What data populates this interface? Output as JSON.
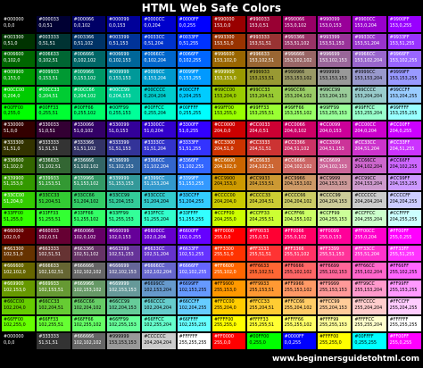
{
  "title": "HTML Web Safe Colors",
  "footer": "www.beginnersguidetohtml.com",
  "chart_data": {
    "type": "table",
    "rows": [
      [
        {
          "hex": "#000000",
          "rgb": "0,0,0"
        },
        {
          "hex": "#000033",
          "rgb": "0,0,51"
        },
        {
          "hex": "#000066",
          "rgb": "0,0,102"
        },
        {
          "hex": "#000099",
          "rgb": "0,0,153"
        },
        {
          "hex": "#0000CC",
          "rgb": "0,0,204"
        },
        {
          "hex": "#0000FF",
          "rgb": "0,0,255"
        },
        {
          "hex": "#990000",
          "rgb": "153,0,0"
        },
        {
          "hex": "#990033",
          "rgb": "153,0,51"
        },
        {
          "hex": "#990066",
          "rgb": "153,0,102"
        },
        {
          "hex": "#990099",
          "rgb": "153,0,153"
        },
        {
          "hex": "#9900CC",
          "rgb": "153,0,204"
        },
        {
          "hex": "#9900FF",
          "rgb": "153,0,255"
        }
      ],
      [
        {
          "hex": "#003300",
          "rgb": "0,51,0"
        },
        {
          "hex": "#003333",
          "rgb": "0,51,51"
        },
        {
          "hex": "#003366",
          "rgb": "0,51,102"
        },
        {
          "hex": "#003399",
          "rgb": "0,51,153"
        },
        {
          "hex": "#0033CC",
          "rgb": "0,51,204"
        },
        {
          "hex": "#0033FF",
          "rgb": "0,51,255"
        },
        {
          "hex": "#993300",
          "rgb": "153,51,0"
        },
        {
          "hex": "#993333",
          "rgb": "153,51,51"
        },
        {
          "hex": "#993366",
          "rgb": "153,51,102"
        },
        {
          "hex": "#993399",
          "rgb": "153,51,153"
        },
        {
          "hex": "#9933CC",
          "rgb": "153,51,204"
        },
        {
          "hex": "#9933FF",
          "rgb": "153,51,255"
        }
      ],
      [
        {
          "hex": "#006600",
          "rgb": "0,102,0"
        },
        {
          "hex": "#006633",
          "rgb": "0,102,51"
        },
        {
          "hex": "#006666",
          "rgb": "0,102,102"
        },
        {
          "hex": "#006699",
          "rgb": "0,102,153"
        },
        {
          "hex": "#0066CC",
          "rgb": "0,102,204"
        },
        {
          "hex": "#0066FF",
          "rgb": "0,102,255"
        },
        {
          "hex": "#996600",
          "rgb": "153,102,0"
        },
        {
          "hex": "#996633",
          "rgb": "153,102,51"
        },
        {
          "hex": "#996666",
          "rgb": "153,102,102"
        },
        {
          "hex": "#996699",
          "rgb": "153,102,153"
        },
        {
          "hex": "#9966CC",
          "rgb": "153,102,204"
        },
        {
          "hex": "#9966FF",
          "rgb": "153,102,255"
        }
      ],
      [
        {
          "hex": "#009900",
          "rgb": "0,153,0"
        },
        {
          "hex": "#009933",
          "rgb": "0,153,51"
        },
        {
          "hex": "#009966",
          "rgb": "0,153,102"
        },
        {
          "hex": "#009999",
          "rgb": "0,153,153"
        },
        {
          "hex": "#0099CC",
          "rgb": "0,153,204"
        },
        {
          "hex": "#0099FF",
          "rgb": "0,153,255"
        },
        {
          "hex": "#999900",
          "rgb": "153,153,0"
        },
        {
          "hex": "#999933",
          "rgb": "153,153,51"
        },
        {
          "hex": "#999966",
          "rgb": "153,153,102"
        },
        {
          "hex": "#999999",
          "rgb": "153,153,153"
        },
        {
          "hex": "#9999CC",
          "rgb": "153,153,204"
        },
        {
          "hex": "#9999FF",
          "rgb": "153,153,255"
        }
      ],
      [
        {
          "hex": "#00CC00",
          "rgb": "0,204,0"
        },
        {
          "hex": "#00CC33",
          "rgb": "0,204,51"
        },
        {
          "hex": "#00CC66",
          "rgb": "0,204,102"
        },
        {
          "hex": "#00CC99",
          "rgb": "0,204,153"
        },
        {
          "hex": "#00CCCC",
          "rgb": "0,204,204"
        },
        {
          "hex": "#00CCFF",
          "rgb": "0,204,255"
        },
        {
          "hex": "#99CC00",
          "rgb": "153,204,0"
        },
        {
          "hex": "#99CC33",
          "rgb": "153,204,51"
        },
        {
          "hex": "#99CC66",
          "rgb": "153,204,102"
        },
        {
          "hex": "#99CC99",
          "rgb": "153,204,153"
        },
        {
          "hex": "#99CCCC",
          "rgb": "153,204,204"
        },
        {
          "hex": "#99CCFF",
          "rgb": "153,204,255"
        }
      ],
      [
        {
          "hex": "#00FF00",
          "rgb": "0,255,0"
        },
        {
          "hex": "#00FF33",
          "rgb": "0,255,51"
        },
        {
          "hex": "#00FF66",
          "rgb": "0,255,102"
        },
        {
          "hex": "#00FF99",
          "rgb": "0,255,153"
        },
        {
          "hex": "#00FFCC",
          "rgb": "0,255,204"
        },
        {
          "hex": "#00FFFF",
          "rgb": "0,255,255"
        },
        {
          "hex": "#99FF00",
          "rgb": "153,255,0"
        },
        {
          "hex": "#99FF33",
          "rgb": "153,255,51"
        },
        {
          "hex": "#99FF66",
          "rgb": "153,255,102"
        },
        {
          "hex": "#99FF99",
          "rgb": "153,255,153"
        },
        {
          "hex": "#99FFCC",
          "rgb": "153,255,204"
        },
        {
          "hex": "#99FFFF",
          "rgb": "153,255,255"
        }
      ],
      [
        {
          "hex": "#330000",
          "rgb": "51,0,0"
        },
        {
          "hex": "#330033",
          "rgb": "51,0,51"
        },
        {
          "hex": "#330066",
          "rgb": "51,0,102"
        },
        {
          "hex": "#330099",
          "rgb": "51,0,153"
        },
        {
          "hex": "#3300CC",
          "rgb": "51,0,204"
        },
        {
          "hex": "#3300FF",
          "rgb": "51,0,255"
        },
        {
          "hex": "#CC0000",
          "rgb": "204,0,0"
        },
        {
          "hex": "#CC0033",
          "rgb": "204,0,51"
        },
        {
          "hex": "#CC0066",
          "rgb": "204,0,102"
        },
        {
          "hex": "#CC0099",
          "rgb": "204,0,153"
        },
        {
          "hex": "#CC00CC",
          "rgb": "204,0,204"
        },
        {
          "hex": "#CC00FF",
          "rgb": "204,0,255"
        }
      ],
      [
        {
          "hex": "#333300",
          "rgb": "51,51,0"
        },
        {
          "hex": "#333333",
          "rgb": "51,51,51"
        },
        {
          "hex": "#333366",
          "rgb": "51,51,102"
        },
        {
          "hex": "#333399",
          "rgb": "51,51,153"
        },
        {
          "hex": "#3333CC",
          "rgb": "51,51,204"
        },
        {
          "hex": "#3333FF",
          "rgb": "51,51,255"
        },
        {
          "hex": "#CC3300",
          "rgb": "204,51,0"
        },
        {
          "hex": "#CC3333",
          "rgb": "204,51,51"
        },
        {
          "hex": "#CC3366",
          "rgb": "204,51,102"
        },
        {
          "hex": "#CC3399",
          "rgb": "204,51,153"
        },
        {
          "hex": "#CC33CC",
          "rgb": "204,51,204"
        },
        {
          "hex": "#CC33FF",
          "rgb": "204,51,255"
        }
      ],
      [
        {
          "hex": "#336600",
          "rgb": "51,102,0"
        },
        {
          "hex": "#336633",
          "rgb": "51,102,51"
        },
        {
          "hex": "#336666",
          "rgb": "51,102,102"
        },
        {
          "hex": "#336699",
          "rgb": "51,102,153"
        },
        {
          "hex": "#3366CC",
          "rgb": "51,102,204"
        },
        {
          "hex": "#3366FF",
          "rgb": "51,102,255"
        },
        {
          "hex": "#CC6600",
          "rgb": "204,102,0"
        },
        {
          "hex": "#CC6633",
          "rgb": "204,102,51"
        },
        {
          "hex": "#CC6666",
          "rgb": "204,102,102"
        },
        {
          "hex": "#CC6699",
          "rgb": "204,102,153"
        },
        {
          "hex": "#CC66CC",
          "rgb": "204,102,204"
        },
        {
          "hex": "#CC66FF",
          "rgb": "204,102,255"
        }
      ],
      [
        {
          "hex": "#339900",
          "rgb": "51,153,0"
        },
        {
          "hex": "#339933",
          "rgb": "51,153,51"
        },
        {
          "hex": "#339966",
          "rgb": "51,153,102"
        },
        {
          "hex": "#339999",
          "rgb": "51,153,153"
        },
        {
          "hex": "#3399CC",
          "rgb": "51,153,204"
        },
        {
          "hex": "#3399FF",
          "rgb": "51,153,255"
        },
        {
          "hex": "#CC9900",
          "rgb": "204,153,0"
        },
        {
          "hex": "#CC9933",
          "rgb": "204,153,51"
        },
        {
          "hex": "#CC9966",
          "rgb": "204,153,102"
        },
        {
          "hex": "#CC9999",
          "rgb": "204,153,153"
        },
        {
          "hex": "#CC99CC",
          "rgb": "204,153,204"
        },
        {
          "hex": "#CC99FF",
          "rgb": "204,153,255"
        }
      ],
      [
        {
          "hex": "#33CC00",
          "rgb": "51,204,0"
        },
        {
          "hex": "#33CC33",
          "rgb": "51,204,51"
        },
        {
          "hex": "#33CC66",
          "rgb": "51,204,102"
        },
        {
          "hex": "#33CC99",
          "rgb": "51,204,153"
        },
        {
          "hex": "#33CCCC",
          "rgb": "51,204,204"
        },
        {
          "hex": "#33CCFF",
          "rgb": "51,204,255"
        },
        {
          "hex": "#CCCC00",
          "rgb": "204,204,0"
        },
        {
          "hex": "#CCCC33",
          "rgb": "204,204,51"
        },
        {
          "hex": "#CCCC66",
          "rgb": "204,204,102"
        },
        {
          "hex": "#CCCC99",
          "rgb": "204,204,153"
        },
        {
          "hex": "#CCCCCC",
          "rgb": "204,204,204"
        },
        {
          "hex": "#CCCCFF",
          "rgb": "204,204,255"
        }
      ],
      [
        {
          "hex": "#33FF00",
          "rgb": "51,255,0"
        },
        {
          "hex": "#33FF33",
          "rgb": "51,255,51"
        },
        {
          "hex": "#33FF66",
          "rgb": "51,255,102"
        },
        {
          "hex": "#33FF99",
          "rgb": "51,255,153"
        },
        {
          "hex": "#33FFCC",
          "rgb": "51,255,204"
        },
        {
          "hex": "#33FFFF",
          "rgb": "51,255,255"
        },
        {
          "hex": "#CCFF00",
          "rgb": "204,255,0"
        },
        {
          "hex": "#CCFF33",
          "rgb": "204,255,51"
        },
        {
          "hex": "#CCFF66",
          "rgb": "204,255,102"
        },
        {
          "hex": "#CCFF99",
          "rgb": "204,255,153"
        },
        {
          "hex": "#CCFFCC",
          "rgb": "204,255,204"
        },
        {
          "hex": "#CCFFFF",
          "rgb": "204,255,255"
        }
      ],
      [
        {
          "hex": "#660000",
          "rgb": "102,0,0"
        },
        {
          "hex": "#660033",
          "rgb": "102,0,51"
        },
        {
          "hex": "#660066",
          "rgb": "102,0,102"
        },
        {
          "hex": "#660099",
          "rgb": "102,0,153"
        },
        {
          "hex": "#6600CC",
          "rgb": "102,0,204"
        },
        {
          "hex": "#6600FF",
          "rgb": "102,0,255"
        },
        {
          "hex": "#FF0000",
          "rgb": "255,0,0"
        },
        {
          "hex": "#FF0033",
          "rgb": "255,0,51"
        },
        {
          "hex": "#FF0066",
          "rgb": "255,0,102"
        },
        {
          "hex": "#FF0099",
          "rgb": "255,0,153"
        },
        {
          "hex": "#FF00CC",
          "rgb": "255,0,204"
        },
        {
          "hex": "#FF00FF",
          "rgb": "255,0,255"
        }
      ],
      [
        {
          "hex": "#663300",
          "rgb": "102,51,0"
        },
        {
          "hex": "#663333",
          "rgb": "102,51,51"
        },
        {
          "hex": "#663366",
          "rgb": "102,51,102"
        },
        {
          "hex": "#663399",
          "rgb": "102,51,153"
        },
        {
          "hex": "#6633CC",
          "rgb": "102,51,204"
        },
        {
          "hex": "#6633FF",
          "rgb": "102,51,255"
        },
        {
          "hex": "#FF3300",
          "rgb": "255,51,0"
        },
        {
          "hex": "#FF3333",
          "rgb": "255,51,51"
        },
        {
          "hex": "#FF3366",
          "rgb": "255,51,102"
        },
        {
          "hex": "#FF3399",
          "rgb": "255,51,153"
        },
        {
          "hex": "#FF33CC",
          "rgb": "255,51,204"
        },
        {
          "hex": "#FF33FF",
          "rgb": "255,51,255"
        }
      ],
      [
        {
          "hex": "#666600",
          "rgb": "102,102,0"
        },
        {
          "hex": "#666633",
          "rgb": "102,102,51"
        },
        {
          "hex": "#666666",
          "rgb": "102,102,102"
        },
        {
          "hex": "#666699",
          "rgb": "102,102,153"
        },
        {
          "hex": "#6666CC",
          "rgb": "102,102,204"
        },
        {
          "hex": "#6666FF",
          "rgb": "102,102,255"
        },
        {
          "hex": "#FF6600",
          "rgb": "255,102,0"
        },
        {
          "hex": "#FF6633",
          "rgb": "255,102,51"
        },
        {
          "hex": "#FF6666",
          "rgb": "255,102,102"
        },
        {
          "hex": "#FF6699",
          "rgb": "255,102,153"
        },
        {
          "hex": "#FF66CC",
          "rgb": "255,102,204"
        },
        {
          "hex": "#FF66FF",
          "rgb": "255,102,255"
        }
      ],
      [
        {
          "hex": "#669900",
          "rgb": "102,153,0"
        },
        {
          "hex": "#669933",
          "rgb": "102,153,51"
        },
        {
          "hex": "#669966",
          "rgb": "102,153,102"
        },
        {
          "hex": "#669999",
          "rgb": "102,153,153"
        },
        {
          "hex": "#6699CC",
          "rgb": "102,153,204"
        },
        {
          "hex": "#6699FF",
          "rgb": "102,153,255"
        },
        {
          "hex": "#FF9900",
          "rgb": "255,153,0"
        },
        {
          "hex": "#FF9933",
          "rgb": "255,153,51"
        },
        {
          "hex": "#FF9966",
          "rgb": "255,153,102"
        },
        {
          "hex": "#FF9999",
          "rgb": "255,153,153"
        },
        {
          "hex": "#FF99CC",
          "rgb": "255,153,204"
        },
        {
          "hex": "#FF99FF",
          "rgb": "255,153,255"
        }
      ],
      [
        {
          "hex": "#66CC00",
          "rgb": "102,204,0"
        },
        {
          "hex": "#66CC33",
          "rgb": "102,204,51"
        },
        {
          "hex": "#66CC66",
          "rgb": "102,204,102"
        },
        {
          "hex": "#66CC99",
          "rgb": "102,204,153"
        },
        {
          "hex": "#66CCCC",
          "rgb": "102,204,204"
        },
        {
          "hex": "#66CCFF",
          "rgb": "102,204,255"
        },
        {
          "hex": "#FFCC00",
          "rgb": "255,204,0"
        },
        {
          "hex": "#FFCC33",
          "rgb": "255,204,51"
        },
        {
          "hex": "#FFCC66",
          "rgb": "255,204,102"
        },
        {
          "hex": "#FFCC99",
          "rgb": "255,204,153"
        },
        {
          "hex": "#FFCCCC",
          "rgb": "255,204,204"
        },
        {
          "hex": "#FFCCFF",
          "rgb": "255,204,255"
        }
      ],
      [
        {
          "hex": "#66FF00",
          "rgb": "102,255,0"
        },
        {
          "hex": "#66FF33",
          "rgb": "102,255,51"
        },
        {
          "hex": "#66FF66",
          "rgb": "102,255,102"
        },
        {
          "hex": "#66FF99",
          "rgb": "102,255,153"
        },
        {
          "hex": "#66FFCC",
          "rgb": "102,255,204"
        },
        {
          "hex": "#66FFFF",
          "rgb": "102,255,255"
        },
        {
          "hex": "#FFFF00",
          "rgb": "255,255,0"
        },
        {
          "hex": "#FFFF33",
          "rgb": "255,255,51"
        },
        {
          "hex": "#FFFF66",
          "rgb": "255,255,102"
        },
        {
          "hex": "#FFFF99",
          "rgb": "255,255,153"
        },
        {
          "hex": "#FFFFCC",
          "rgb": "255,255,204"
        },
        {
          "hex": "#FFFFFF",
          "rgb": "255,255,255"
        }
      ],
      [
        {
          "hex": "#000000",
          "rgb": "0,0,0"
        },
        {
          "hex": "#333333",
          "rgb": "51,51,51"
        },
        {
          "hex": "#666666",
          "rgb": "102,102,102"
        },
        {
          "hex": "#999999",
          "rgb": "153,153,153"
        },
        {
          "hex": "#CCCCCC",
          "rgb": "204,204,204"
        },
        {
          "hex": "#FFFFFF",
          "rgb": "255,255,255"
        },
        {
          "hex": "#FF0000",
          "rgb": "255,0,0"
        },
        {
          "hex": "#00FF00",
          "rgb": "0,255,0"
        },
        {
          "hex": "#0000FF",
          "rgb": "0,0,255"
        },
        {
          "hex": "#FFFF00",
          "rgb": "255,255,0"
        },
        {
          "hex": "#00FFFF",
          "rgb": "0,255,255"
        },
        {
          "hex": "#FF00FF",
          "rgb": "255,0,255"
        }
      ]
    ]
  }
}
